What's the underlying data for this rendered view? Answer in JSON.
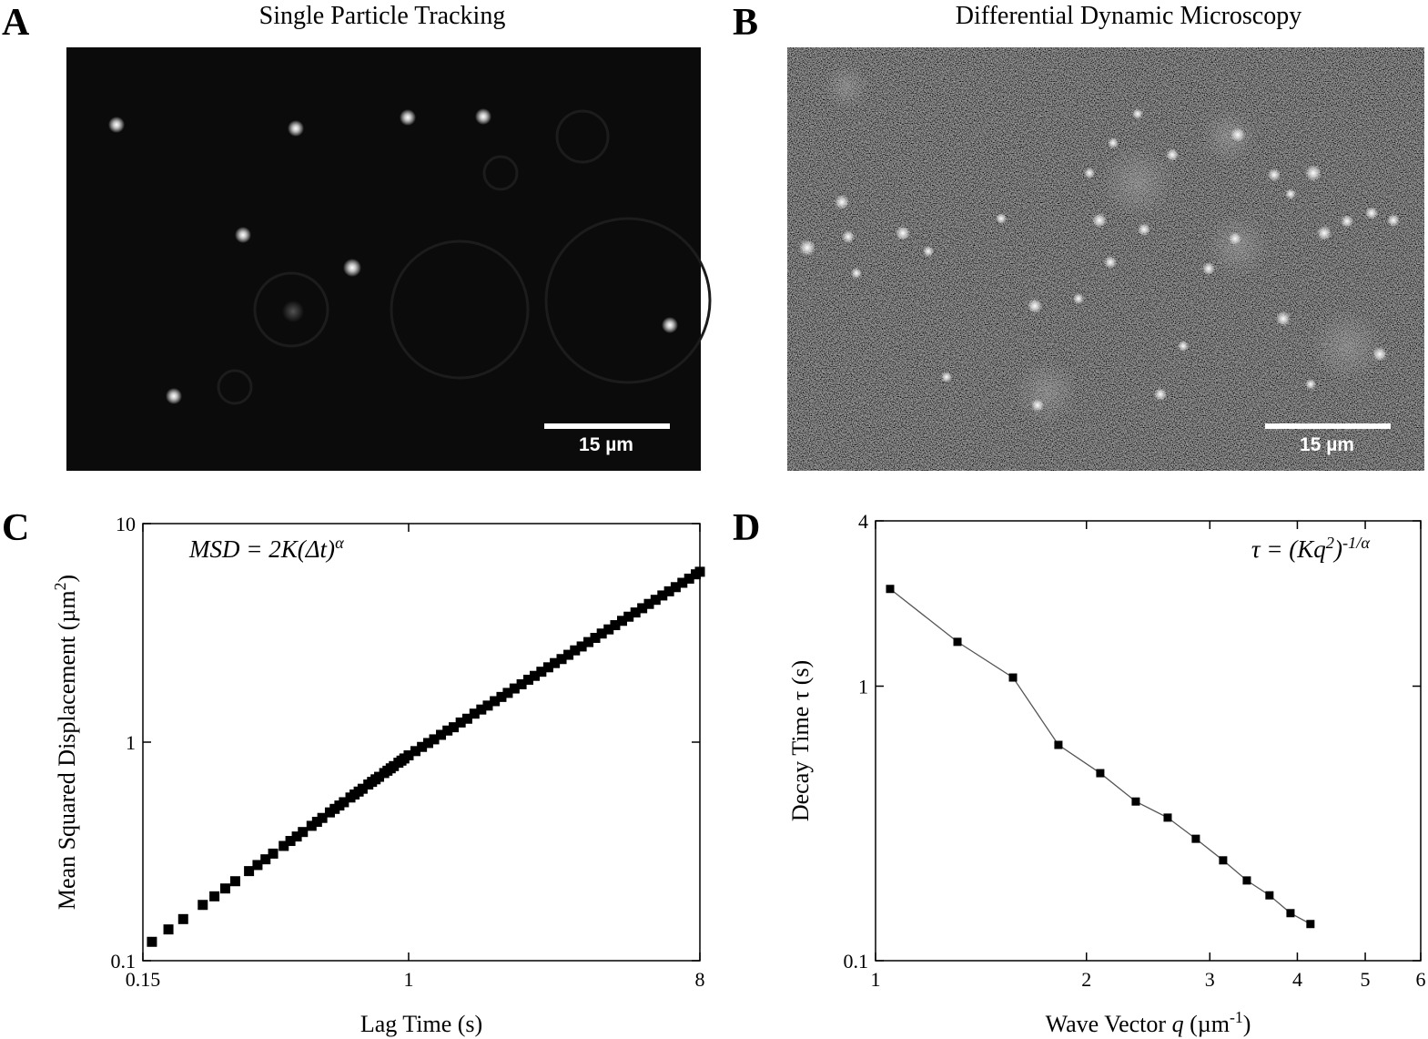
{
  "panels": {
    "A": {
      "label": "A",
      "title": "Single Particle Tracking",
      "scale_bar": "15 µm"
    },
    "B": {
      "label": "B",
      "title": "Differential Dynamic Microscopy",
      "scale_bar": "15 µm"
    }
  },
  "chart_data": [
    {
      "type": "scatter",
      "panel_label": "C",
      "xlabel": "Lag Time (s)",
      "ylabel": [
        "Mean Squared Displacement (µm",
        "2",
        ")"
      ],
      "annotation": [
        "MSD = 2K(Δt)",
        "α"
      ],
      "xscale": "log",
      "yscale": "log",
      "xlim": [
        0.15,
        8
      ],
      "ylim": [
        0.1,
        10
      ],
      "xticks": [
        0.15,
        1,
        8
      ],
      "yticks": [
        0.1,
        1,
        10
      ],
      "color": "#000000",
      "x": [
        0.16,
        0.18,
        0.2,
        0.23,
        0.25,
        0.27,
        0.29,
        0.32,
        0.34,
        0.36,
        0.38,
        0.41,
        0.43,
        0.45,
        0.47,
        0.5,
        0.52,
        0.54,
        0.57,
        0.59,
        0.61,
        0.63,
        0.66,
        0.68,
        0.7,
        0.72,
        0.75,
        0.77,
        0.79,
        0.81,
        0.84,
        0.86,
        0.88,
        0.9,
        0.93,
        0.95,
        0.97,
        1.0,
        1.05,
        1.1,
        1.15,
        1.2,
        1.26,
        1.32,
        1.38,
        1.45,
        1.52,
        1.6,
        1.68,
        1.76,
        1.85,
        1.94,
        2.03,
        2.13,
        2.24,
        2.35,
        2.46,
        2.58,
        2.71,
        2.84,
        2.98,
        3.13,
        3.28,
        3.44,
        3.61,
        3.79,
        3.97,
        4.17,
        4.37,
        4.59,
        4.81,
        5.05,
        5.3,
        5.56,
        5.83,
        6.12,
        6.42,
        6.73,
        7.06,
        7.41,
        7.77,
        8.0
      ],
      "values": [
        0.122,
        0.139,
        0.155,
        0.18,
        0.197,
        0.214,
        0.231,
        0.257,
        0.274,
        0.291,
        0.309,
        0.335,
        0.353,
        0.37,
        0.388,
        0.414,
        0.432,
        0.45,
        0.477,
        0.495,
        0.513,
        0.531,
        0.558,
        0.576,
        0.594,
        0.612,
        0.64,
        0.658,
        0.676,
        0.694,
        0.722,
        0.74,
        0.759,
        0.777,
        0.805,
        0.823,
        0.842,
        0.87,
        0.91,
        0.951,
        0.991,
        1.03,
        1.08,
        1.13,
        1.17,
        1.23,
        1.28,
        1.35,
        1.41,
        1.47,
        1.54,
        1.61,
        1.68,
        1.76,
        1.84,
        1.93,
        2.01,
        2.1,
        2.2,
        2.3,
        2.4,
        2.51,
        2.63,
        2.74,
        2.87,
        3.0,
        3.14,
        3.28,
        3.43,
        3.59,
        3.75,
        3.92,
        4.1,
        4.29,
        4.48,
        4.69,
        4.9,
        5.12,
        5.36,
        5.6,
        5.86,
        6.02
      ]
    },
    {
      "type": "line",
      "panel_label": "D",
      "xlabel": [
        "Wave Vector ",
        "q",
        " (µm",
        "-1",
        ")"
      ],
      "ylabel": "Decay Time τ (s)",
      "annotation": [
        "τ = (Kq",
        "2",
        ")",
        "-1/α"
      ],
      "xscale": "log",
      "yscale": "log",
      "xlim": [
        1,
        6
      ],
      "ylim": [
        0.1,
        4
      ],
      "xticks": [
        1,
        2,
        3,
        4,
        5,
        6
      ],
      "yticks": [
        0.1,
        1,
        4
      ],
      "color": "#000000",
      "x": [
        1.049,
        1.309,
        1.571,
        1.824,
        2.093,
        2.352,
        2.612,
        2.865,
        3.134,
        3.388,
        3.65,
        3.911,
        4.176
      ],
      "values": [
        2.26,
        1.45,
        1.075,
        0.611,
        0.482,
        0.38,
        0.332,
        0.278,
        0.232,
        0.196,
        0.173,
        0.149,
        0.136
      ]
    }
  ]
}
